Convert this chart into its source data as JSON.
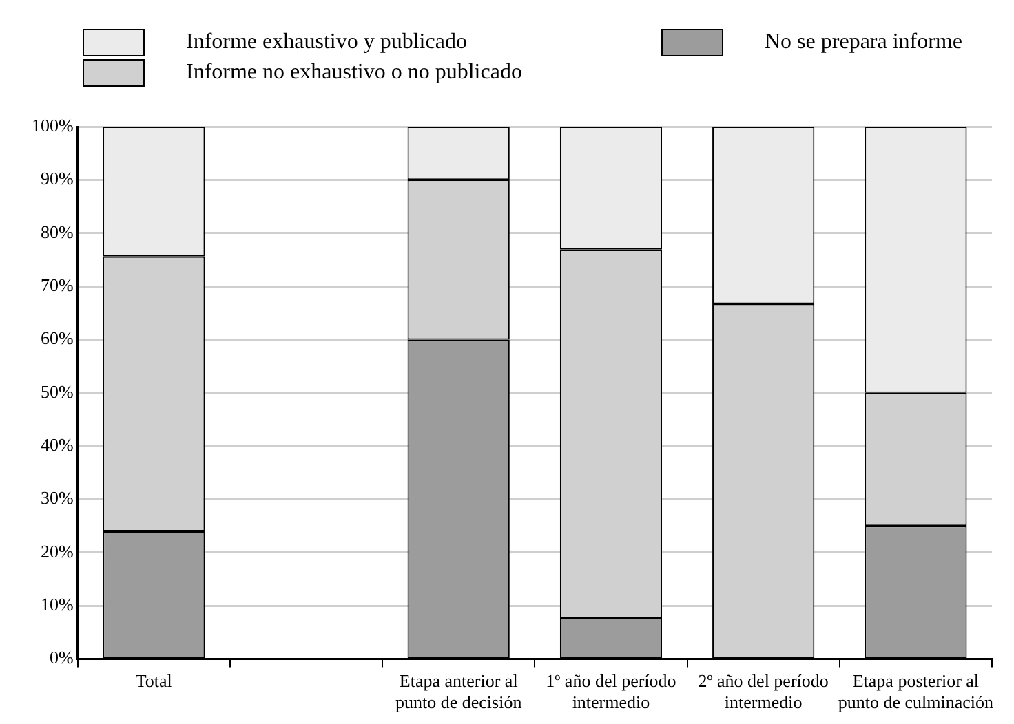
{
  "chart_data": {
    "type": "bar",
    "stacked": true,
    "legend": "top",
    "grid": "y",
    "categories": [
      "Total",
      null,
      "Etapa anterior al punto de decisión",
      "1º año del período intermedio",
      "2º año del período intermedio",
      "Etapa posterior al punto de culminación"
    ],
    "series": [
      {
        "name": "No se prepara informe",
        "color": "#9c9c9c",
        "values": [
          24,
          null,
          60,
          7.7,
          0,
          25
        ]
      },
      {
        "name": "Informe no exhaustivo o no publicado",
        "color": "#d0d0d0",
        "values": [
          51.6,
          null,
          30,
          69.2,
          66.7,
          25
        ]
      },
      {
        "name": "Informe exhaustivo y publicado",
        "color": "#ebebeb",
        "values": [
          24.4,
          null,
          10,
          23.1,
          33.3,
          50
        ]
      }
    ],
    "ylim": [
      0,
      100
    ],
    "yticks": [
      {
        "value": 0,
        "label": "0%"
      },
      {
        "value": 10,
        "label": "10%"
      },
      {
        "value": 20,
        "label": "20%"
      },
      {
        "value": 30,
        "label": "30%"
      },
      {
        "value": 40,
        "label": "40%"
      },
      {
        "value": 50,
        "label": "50%"
      },
      {
        "value": 60,
        "label": "60%"
      },
      {
        "value": 70,
        "label": "70%"
      },
      {
        "value": 80,
        "label": "80%"
      },
      {
        "value": 90,
        "label": "90%"
      },
      {
        "value": 100,
        "label": "100%"
      }
    ]
  }
}
